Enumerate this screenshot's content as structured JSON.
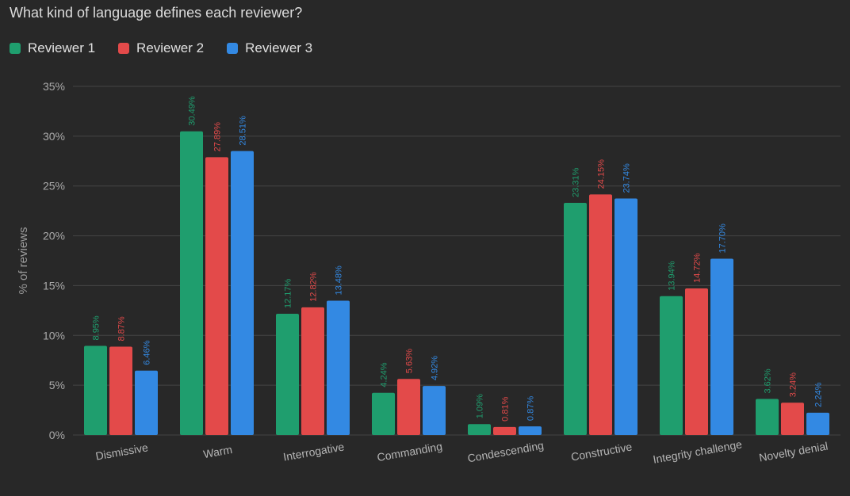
{
  "title": "What kind of language defines each reviewer?",
  "legend": [
    {
      "label": "Reviewer 1",
      "color": "#1f9e6e"
    },
    {
      "label": "Reviewer 2",
      "color": "#e34a4a"
    },
    {
      "label": "Reviewer 3",
      "color": "#3389e3"
    }
  ],
  "chart_data": {
    "type": "bar",
    "title": "What kind of language defines each reviewer?",
    "xlabel": "",
    "ylabel": "% of reviews",
    "ylim": [
      0,
      35
    ],
    "yticks": [
      "0%",
      "5%",
      "10%",
      "15%",
      "20%",
      "25%",
      "30%",
      "35%"
    ],
    "grid": true,
    "legend_position": "top-left",
    "categories": [
      "Dismissive",
      "Warm",
      "Interrogative",
      "Commanding",
      "Condescending",
      "Constructive",
      "Integrity challenge",
      "Novelty denial"
    ],
    "series": [
      {
        "name": "Reviewer 1",
        "color": "#1f9e6e",
        "values": [
          8.95,
          30.49,
          12.17,
          4.24,
          1.09,
          23.31,
          13.94,
          3.62
        ],
        "labels": [
          "8.95%",
          "30.49%",
          "12.17%",
          "4.24%",
          "1.09%",
          "23.31%",
          "13.94%",
          "3.62%"
        ]
      },
      {
        "name": "Reviewer 2",
        "color": "#e34a4a",
        "values": [
          8.87,
          27.89,
          12.82,
          5.63,
          0.81,
          24.15,
          14.72,
          3.24
        ],
        "labels": [
          "8.87%",
          "27.89%",
          "12.82%",
          "5.63%",
          "0.81%",
          "24.15%",
          "14.72%",
          "3.24%"
        ]
      },
      {
        "name": "Reviewer 3",
        "color": "#3389e3",
        "values": [
          6.46,
          28.51,
          13.48,
          4.92,
          0.87,
          23.74,
          17.7,
          2.24
        ],
        "labels": [
          "6.46%",
          "28.51%",
          "13.48%",
          "4.92%",
          "0.87%",
          "23.74%",
          "17.70%",
          "2.24%"
        ]
      }
    ]
  }
}
